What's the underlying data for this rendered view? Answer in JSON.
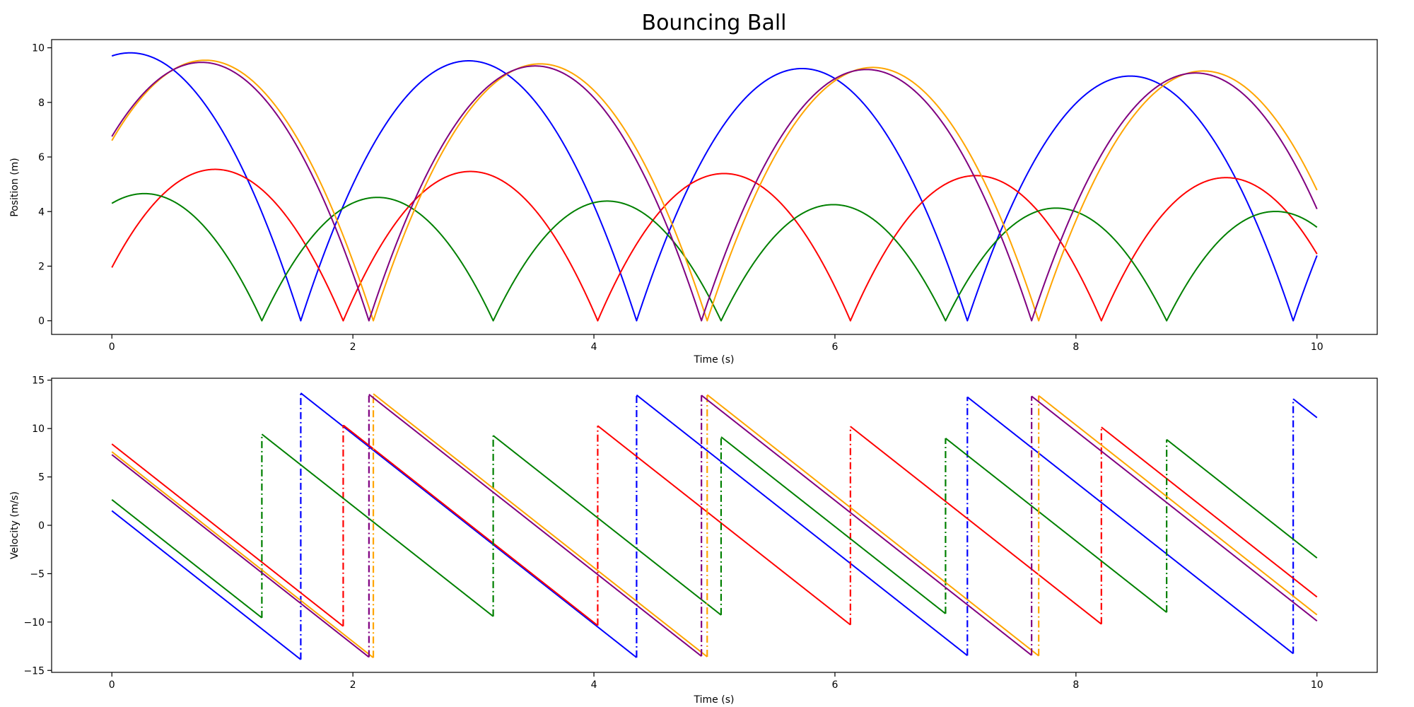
{
  "chart_data": {
    "title": "Bouncing Ball",
    "gravity": 9.81,
    "t_range": [
      0,
      10
    ],
    "balls": [
      {
        "color": "#0000ff",
        "h0": 9.7,
        "v0": 1.5,
        "restitution": 0.985
      },
      {
        "color": "#ff0000",
        "h0": 1.95,
        "v0": 8.4,
        "restitution": 0.993
      },
      {
        "color": "#008000",
        "h0": 4.3,
        "v0": 2.65,
        "restitution": 0.985
      },
      {
        "color": "#ffa500",
        "h0": 6.6,
        "v0": 7.6,
        "restitution": 0.993
      },
      {
        "color": "#800080",
        "h0": 6.75,
        "v0": 7.3,
        "restitution": 0.993
      }
    ],
    "panels": [
      {
        "type": "line",
        "quantity": "position",
        "xlabel": "Time (s)",
        "ylabel": "Position (m)",
        "xlim": [
          -0.5,
          10.5
        ],
        "ylim": [
          -0.5,
          10.3
        ],
        "xticks": [
          0,
          2,
          4,
          6,
          8,
          10
        ],
        "yticks": [
          0,
          2,
          4,
          6,
          8,
          10
        ],
        "xtick_labels": [
          "0",
          "2",
          "4",
          "6",
          "8",
          "10"
        ],
        "ytick_labels": [
          "0",
          "2",
          "4",
          "6",
          "8",
          "10"
        ]
      },
      {
        "type": "line",
        "quantity": "velocity",
        "xlabel": "Time (s)",
        "ylabel": "Velocity (m/s)",
        "xlim": [
          -0.5,
          10.5
        ],
        "ylim": [
          -15.2,
          15.2
        ],
        "xticks": [
          0,
          2,
          4,
          6,
          8,
          10
        ],
        "yticks": [
          -15,
          -10,
          -5,
          0,
          5,
          10,
          15
        ],
        "xtick_labels": [
          "0",
          "2",
          "4",
          "6",
          "8",
          "10"
        ],
        "ytick_labels": [
          "−15",
          "−10",
          "−5",
          "0",
          "5",
          "10",
          "15"
        ]
      }
    ]
  }
}
